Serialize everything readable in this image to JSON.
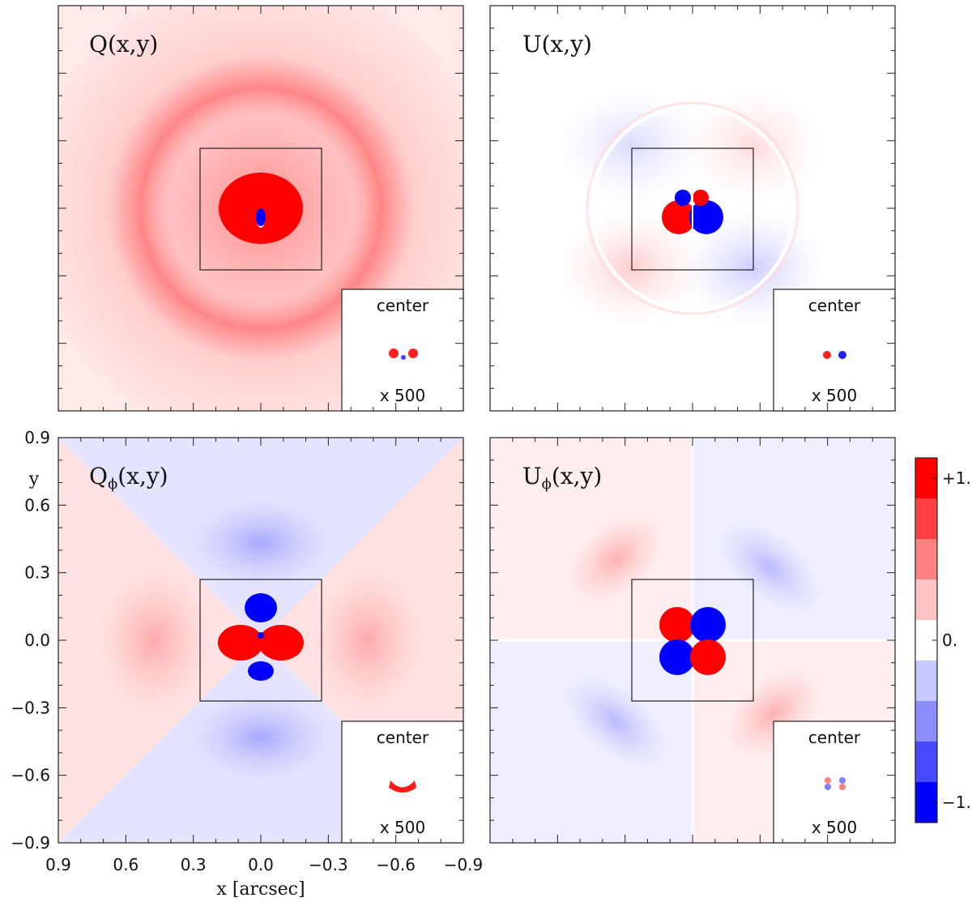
{
  "chart_data": [
    {
      "type": "heatmap",
      "title": "Q(x,y)",
      "inset": {
        "title": "center",
        "scale": "x 500"
      },
      "xlim": [
        0.9,
        -0.9
      ],
      "ylim": [
        -0.9,
        0.9
      ],
      "zoom_box": [
        -0.27,
        0.27
      ]
    },
    {
      "type": "heatmap",
      "title": "U(x,y)",
      "inset": {
        "title": "center",
        "scale": "x 500"
      },
      "xlim": [
        0.9,
        -0.9
      ],
      "ylim": [
        -0.9,
        0.9
      ],
      "zoom_box": [
        -0.27,
        0.27
      ]
    },
    {
      "type": "heatmap",
      "title": "Q",
      "title_sub": "ϕ",
      "title_args": "(x,y)",
      "inset": {
        "title": "center",
        "scale": "x 500"
      },
      "xlabel": "x [arcsec]",
      "ylabel": "y",
      "xlim": [
        0.9,
        -0.9
      ],
      "ylim": [
        -0.9,
        0.9
      ],
      "xticks": [
        "0.9",
        "0.6",
        "0.3",
        "0.0",
        "−0.3",
        "−0.6",
        "−0.9"
      ],
      "xtick_values": [
        0.9,
        0.6,
        0.3,
        0.0,
        -0.3,
        -0.6,
        -0.9
      ],
      "yticks": [
        "0.9",
        "0.6",
        "0.3",
        "0.0",
        "−0.3",
        "−0.6",
        "−0.9"
      ],
      "ytick_values": [
        0.9,
        0.6,
        0.3,
        0.0,
        -0.3,
        -0.6,
        -0.9
      ],
      "zoom_box": [
        -0.27,
        0.27
      ]
    },
    {
      "type": "heatmap",
      "title": "U",
      "title_sub": "ϕ",
      "title_args": "(x,y)",
      "inset": {
        "title": "center",
        "scale": "x 500"
      },
      "xlim": [
        0.9,
        -0.9
      ],
      "ylim": [
        -0.9,
        0.9
      ],
      "zoom_box": [
        -0.27,
        0.27
      ]
    }
  ],
  "colorbar": {
    "levels": 8,
    "range": [
      -1,
      1
    ],
    "tick_labels": [
      "+1.",
      "0.",
      "−1."
    ],
    "tick_values": [
      1,
      0,
      -1
    ],
    "colors": [
      "#0000ff",
      "#4848ff",
      "#8c8cff",
      "#c8c8ff",
      "#ffffff",
      "#ffc4c4",
      "#ff8282",
      "#ff4040",
      "#ff0000"
    ]
  },
  "colors": {
    "positive": "#ff0000",
    "negative": "#0000ff",
    "zero": "#ffffff",
    "frame": "#222222"
  }
}
